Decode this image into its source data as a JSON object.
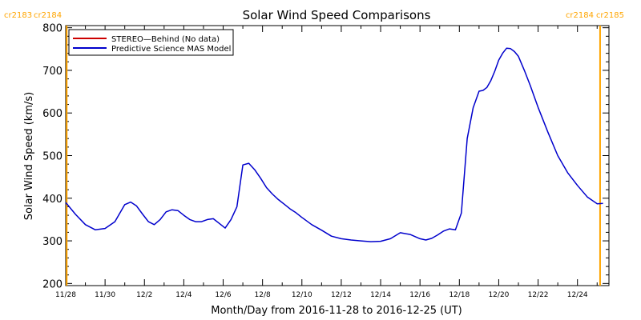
{
  "chart_data": {
    "type": "line",
    "title": "Solar Wind Speed Comparisons",
    "xlabel": "Month/Day from 2016-11-28 to 2016-12-25 (UT)",
    "ylabel": "Solar Wind Speed (km/s)",
    "ylim": [
      195,
      805
    ],
    "xlim_days": [
      0,
      27.6
    ],
    "y_ticks": [
      200,
      300,
      400,
      500,
      600,
      700,
      800
    ],
    "x_tick_labels": [
      {
        "day": 0,
        "label": "11/28"
      },
      {
        "day": 2,
        "label": "11/30"
      },
      {
        "day": 4,
        "label": "12/2"
      },
      {
        "day": 6,
        "label": "12/4"
      },
      {
        "day": 8,
        "label": "12/6"
      },
      {
        "day": 10,
        "label": "12/8"
      },
      {
        "day": 12,
        "label": "12/10"
      },
      {
        "day": 14,
        "label": "12/12"
      },
      {
        "day": 16,
        "label": "12/14"
      },
      {
        "day": 18,
        "label": "12/16"
      },
      {
        "day": 20,
        "label": "12/18"
      },
      {
        "day": 22,
        "label": "12/20"
      },
      {
        "day": 24,
        "label": "12/22"
      },
      {
        "day": 26,
        "label": "12/24"
      }
    ],
    "legend_position": "top-left",
    "series": [
      {
        "name": "STEREO—Behind (No data)",
        "color": "#cc0000",
        "x": [],
        "y": []
      },
      {
        "name": "Predictive Science MAS Model",
        "color": "#0000cc",
        "x": [
          0,
          0.5,
          1.0,
          1.5,
          2.0,
          2.5,
          3.0,
          3.3,
          3.6,
          3.9,
          4.2,
          4.5,
          4.8,
          5.1,
          5.4,
          5.7,
          6.0,
          6.3,
          6.6,
          6.9,
          7.2,
          7.5,
          7.8,
          8.1,
          8.4,
          8.7,
          9.0,
          9.3,
          9.6,
          9.9,
          10.2,
          10.5,
          10.8,
          11.1,
          11.4,
          11.7,
          12.0,
          12.5,
          13.0,
          13.5,
          14.0,
          14.5,
          15.0,
          15.5,
          16.0,
          16.5,
          17.0,
          17.5,
          18.0,
          18.3,
          18.6,
          18.9,
          19.2,
          19.5,
          19.8,
          20.1,
          20.4,
          20.7,
          21.0,
          21.2,
          21.4,
          21.6,
          21.8,
          22.0,
          22.2,
          22.4,
          22.6,
          22.8,
          23.0,
          23.3,
          23.6,
          24.0,
          24.5,
          25.0,
          25.5,
          26.0,
          26.5,
          27.0,
          27.3
        ],
        "y": [
          390,
          362,
          338,
          326,
          329,
          345,
          385,
          391,
          382,
          363,
          345,
          338,
          350,
          368,
          373,
          371,
          360,
          350,
          345,
          345,
          350,
          352,
          341,
          330,
          350,
          380,
          478,
          482,
          467,
          447,
          425,
          410,
          397,
          386,
          375,
          366,
          355,
          338,
          325,
          311,
          305,
          302,
          300,
          298,
          299,
          305,
          319,
          315,
          305,
          302,
          306,
          314,
          323,
          328,
          326,
          365,
          540,
          612,
          651,
          653,
          660,
          676,
          698,
          724,
          740,
          752,
          751,
          744,
          733,
          700,
          665,
          613,
          555,
          500,
          460,
          430,
          403,
          387,
          388
        ]
      }
    ],
    "vertical_markers": [
      {
        "day": 0.05,
        "color": "#ffa500"
      },
      {
        "day": 27.15,
        "color": "#ffa500"
      }
    ],
    "carrington_labels": [
      {
        "text": "cr2183",
        "side": "left",
        "color": "#ffa500"
      },
      {
        "text": "cr2184",
        "side": "left",
        "color": "#ffa500"
      },
      {
        "text": "cr2184",
        "side": "right",
        "color": "#ffa500"
      },
      {
        "text": "cr2185",
        "side": "right",
        "color": "#ffa500"
      }
    ]
  }
}
